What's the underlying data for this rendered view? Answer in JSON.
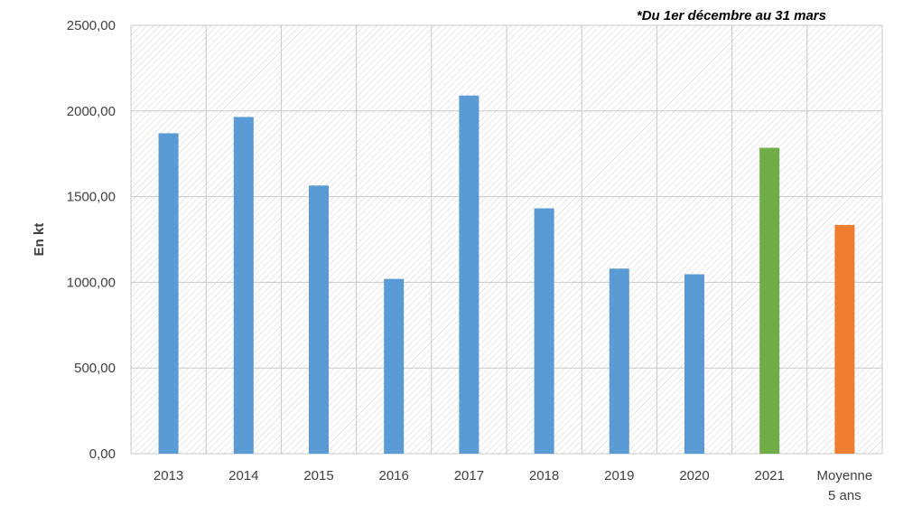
{
  "chart_data": {
    "type": "bar",
    "annotation": "*Du 1er décembre au 31 mars",
    "ylabel": "En kt",
    "xlabel": "",
    "ylim": [
      0,
      2500
    ],
    "yticks": [
      0,
      500,
      1000,
      1500,
      2000,
      2500
    ],
    "ytick_labels": [
      "0,00",
      "500,00",
      "1000,00",
      "1500,00",
      "2000,00",
      "2500,00"
    ],
    "grid": true,
    "categories": [
      "2013",
      "2014",
      "2015",
      "2016",
      "2017",
      "2018",
      "2019",
      "2020",
      "2021",
      "Moyenne 5 ans"
    ],
    "category_lines": [
      [
        "2013"
      ],
      [
        "2014"
      ],
      [
        "2015"
      ],
      [
        "2016"
      ],
      [
        "2017"
      ],
      [
        "2018"
      ],
      [
        "2019"
      ],
      [
        "2020"
      ],
      [
        "2021"
      ],
      [
        "Moyenne",
        "5 ans"
      ]
    ],
    "values": [
      1870,
      1965,
      1565,
      1020,
      2090,
      1432,
      1080,
      1047,
      1785,
      1335
    ],
    "bar_colors": [
      "#5b9bd5",
      "#5b9bd5",
      "#5b9bd5",
      "#5b9bd5",
      "#5b9bd5",
      "#5b9bd5",
      "#5b9bd5",
      "#5b9bd5",
      "#70ad47",
      "#ed7d31"
    ]
  },
  "colors": {
    "plot_background": "#ffffff",
    "hatch": "#d0d0d0",
    "gridline": "#c8c8c8",
    "tick_text": "#404040"
  }
}
